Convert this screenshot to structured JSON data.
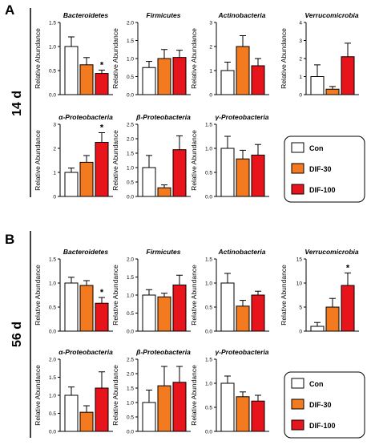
{
  "panels": [
    {
      "letter": "A",
      "timepoint": "14 d"
    },
    {
      "letter": "B",
      "timepoint": "56 d"
    }
  ],
  "ylabel": "Relative Abundance",
  "groups": [
    "Con",
    "DIF-30",
    "DIF-100"
  ],
  "colors": {
    "Con": "#ffffff",
    "DIF-30": "#f47a20",
    "DIF-100": "#e8141b",
    "stroke": "#000000"
  },
  "legend": {
    "labels": [
      "Con",
      "DIF-30",
      "DIF-100"
    ]
  },
  "chart_data": [
    {
      "panel": "A",
      "type": "bar",
      "title": "Bacteroidetes",
      "ylabel": "Relative Abundance",
      "categories": [
        "Con",
        "DIF-30",
        "DIF-100"
      ],
      "values": [
        1.0,
        0.62,
        0.44
      ],
      "errors": [
        0.2,
        0.15,
        0.07
      ],
      "ylim": [
        0,
        1.5
      ],
      "yticks": [
        "0.0",
        "0.5",
        "1.0",
        "1.5"
      ],
      "significance": [
        "",
        "",
        "*"
      ]
    },
    {
      "panel": "A",
      "type": "bar",
      "title": "Firmicutes",
      "ylabel": "Relative Abundance",
      "categories": [
        "Con",
        "DIF-30",
        "DIF-100"
      ],
      "values": [
        0.75,
        1.0,
        1.03
      ],
      "errors": [
        0.17,
        0.25,
        0.2
      ],
      "ylim": [
        0,
        2.0
      ],
      "yticks": [
        "0.0",
        "0.5",
        "1.0",
        "1.5",
        "2.0"
      ],
      "significance": [
        "",
        "",
        ""
      ]
    },
    {
      "panel": "A",
      "type": "bar",
      "title": "Actinobacteria",
      "ylabel": "Relative Abundance",
      "categories": [
        "Con",
        "DIF-30",
        "DIF-100"
      ],
      "values": [
        1.0,
        2.0,
        1.2
      ],
      "errors": [
        0.35,
        0.45,
        0.3
      ],
      "ylim": [
        0,
        3
      ],
      "yticks": [
        "0",
        "1",
        "2",
        "3"
      ],
      "significance": [
        "",
        "",
        ""
      ]
    },
    {
      "panel": "A",
      "type": "bar",
      "title": "Verrucomicrobia",
      "ylabel": "Relative Abundance",
      "categories": [
        "Con",
        "DIF-30",
        "DIF-100"
      ],
      "values": [
        1.0,
        0.3,
        2.1
      ],
      "errors": [
        0.65,
        0.15,
        0.75
      ],
      "ylim": [
        0,
        4
      ],
      "yticks": [
        "0",
        "1",
        "2",
        "3",
        "4"
      ],
      "significance": [
        "",
        "",
        ""
      ]
    },
    {
      "panel": "A",
      "type": "bar",
      "title": "α-Proteobacteria",
      "ylabel": "Relative Abundance",
      "categories": [
        "Con",
        "DIF-30",
        "DIF-100"
      ],
      "values": [
        1.0,
        1.42,
        2.25
      ],
      "errors": [
        0.18,
        0.28,
        0.4
      ],
      "ylim": [
        0,
        3
      ],
      "yticks": [
        "0",
        "1",
        "2",
        "3"
      ],
      "significance": [
        "",
        "",
        "*"
      ]
    },
    {
      "panel": "A",
      "type": "bar",
      "title": "β-Proteobacteria",
      "ylabel": "Relative Abundance",
      "categories": [
        "Con",
        "DIF-30",
        "DIF-100"
      ],
      "values": [
        1.0,
        0.3,
        1.62
      ],
      "errors": [
        0.42,
        0.1,
        0.48
      ],
      "ylim": [
        0,
        2.5
      ],
      "yticks": [
        "0.0",
        "0.5",
        "1.0",
        "1.5",
        "2.0",
        "2.5"
      ],
      "significance": [
        "",
        "",
        ""
      ]
    },
    {
      "panel": "A",
      "type": "bar",
      "title": "γ-Proteobacteria",
      "ylabel": "Relative Abundance",
      "categories": [
        "Con",
        "DIF-30",
        "DIF-100"
      ],
      "values": [
        1.0,
        0.78,
        0.86
      ],
      "errors": [
        0.25,
        0.18,
        0.22
      ],
      "ylim": [
        0,
        1.5
      ],
      "yticks": [
        "0.0",
        "0.5",
        "1.0",
        "1.5"
      ],
      "significance": [
        "",
        "",
        ""
      ]
    },
    {
      "panel": "B",
      "type": "bar",
      "title": "Bacteroidetes",
      "ylabel": "Relative Abundance",
      "categories": [
        "Con",
        "DIF-30",
        "DIF-100"
      ],
      "values": [
        1.0,
        0.95,
        0.58
      ],
      "errors": [
        0.12,
        0.1,
        0.12
      ],
      "ylim": [
        0,
        1.5
      ],
      "yticks": [
        "0.0",
        "0.5",
        "1.0",
        "1.5"
      ],
      "significance": [
        "",
        "",
        "*"
      ]
    },
    {
      "panel": "B",
      "type": "bar",
      "title": "Firmicutes",
      "ylabel": "Relative Abundance",
      "categories": [
        "Con",
        "DIF-30",
        "DIF-100"
      ],
      "values": [
        1.0,
        0.95,
        1.28
      ],
      "errors": [
        0.15,
        0.1,
        0.27
      ],
      "ylim": [
        0,
        2.0
      ],
      "yticks": [
        "0.0",
        "0.5",
        "1.0",
        "1.5",
        "2.0"
      ],
      "significance": [
        "",
        "",
        ""
      ]
    },
    {
      "panel": "B",
      "type": "bar",
      "title": "Actinobacteria",
      "ylabel": "Relative Abundance",
      "categories": [
        "Con",
        "DIF-30",
        "DIF-100"
      ],
      "values": [
        1.0,
        0.52,
        0.75
      ],
      "errors": [
        0.2,
        0.12,
        0.08
      ],
      "ylim": [
        0,
        1.5
      ],
      "yticks": [
        "0.0",
        "0.5",
        "1.0",
        "1.5"
      ],
      "significance": [
        "",
        "",
        ""
      ]
    },
    {
      "panel": "B",
      "type": "bar",
      "title": "Verrucomicrobia",
      "ylabel": "Relative Abundance",
      "categories": [
        "Con",
        "DIF-30",
        "DIF-100"
      ],
      "values": [
        1.0,
        5.0,
        9.5
      ],
      "errors": [
        0.8,
        1.8,
        2.6
      ],
      "ylim": [
        0,
        15
      ],
      "yticks": [
        "0",
        "5",
        "10",
        "15"
      ],
      "significance": [
        "",
        "",
        "*"
      ]
    },
    {
      "panel": "B",
      "type": "bar",
      "title": "α-Proteobacteria",
      "ylabel": "Relative Abundance",
      "categories": [
        "Con",
        "DIF-30",
        "DIF-100"
      ],
      "values": [
        1.0,
        0.53,
        1.2
      ],
      "errors": [
        0.23,
        0.18,
        0.45
      ],
      "ylim": [
        0,
        2.0
      ],
      "yticks": [
        "0.0",
        "0.5",
        "1.0",
        "1.5",
        "2.0"
      ],
      "significance": [
        "",
        "",
        ""
      ]
    },
    {
      "panel": "B",
      "type": "bar",
      "title": "β-Proteobacteria",
      "ylabel": "Relative Abundance",
      "categories": [
        "Con",
        "DIF-30",
        "DIF-100"
      ],
      "values": [
        1.0,
        1.58,
        1.7
      ],
      "errors": [
        0.43,
        0.67,
        0.55
      ],
      "ylim": [
        0,
        2.5
      ],
      "yticks": [
        "0.0",
        "0.5",
        "1.0",
        "1.5",
        "2.0",
        "2.5"
      ],
      "significance": [
        "",
        "",
        ""
      ]
    },
    {
      "panel": "B",
      "type": "bar",
      "title": "γ-Proteobacteria",
      "ylabel": "Relative Abundance",
      "categories": [
        "Con",
        "DIF-30",
        "DIF-100"
      ],
      "values": [
        1.0,
        0.72,
        0.63
      ],
      "errors": [
        0.15,
        0.1,
        0.12
      ],
      "ylim": [
        0,
        1.5
      ],
      "yticks": [
        "0.0",
        "0.5",
        "1.0",
        "1.5"
      ],
      "significance": [
        "",
        "",
        ""
      ]
    }
  ]
}
